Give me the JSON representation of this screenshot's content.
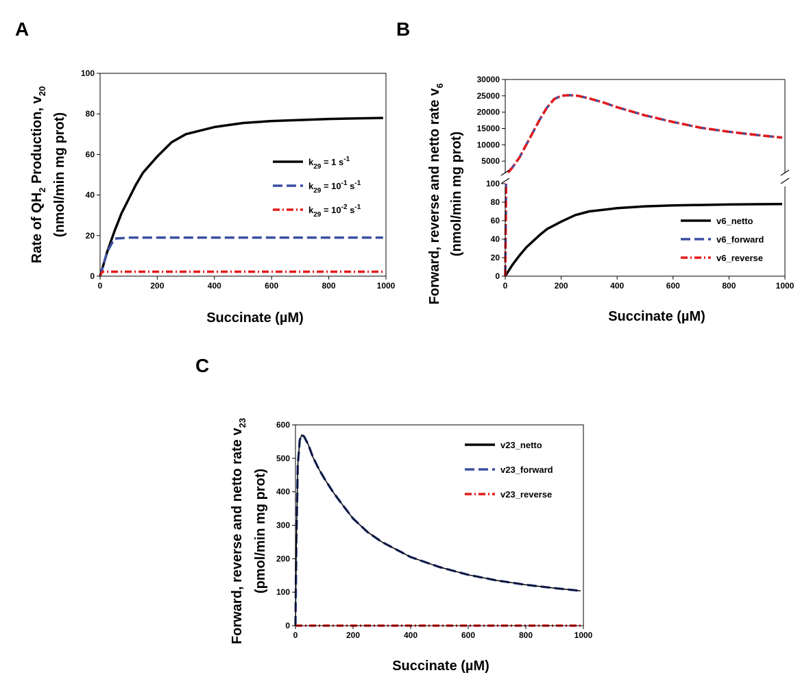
{
  "panels": [
    {
      "id": "A",
      "label": "A",
      "xlabel": "Succinate (µM)",
      "ylabel_line1": [
        "Rate of QH",
        "2",
        " Production, v",
        "20"
      ],
      "ylabel_line2": "(nmol/min mg prot)"
    },
    {
      "id": "B",
      "label": "B",
      "xlabel": "Succinate (µM)",
      "ylabel_line1": [
        "Forward, reverse and netto rate  v",
        "6"
      ],
      "ylabel_line2": "(nmol/min mg prot)"
    },
    {
      "id": "C",
      "label": "C",
      "xlabel": "Succinate (µM)",
      "ylabel_line1": [
        "Forward, reverse and netto rate v",
        "23"
      ],
      "ylabel_line2": "(pmol/min mg prot)"
    }
  ],
  "legendA": [
    {
      "parts": [
        "k",
        "29",
        " = 1 s",
        "-1"
      ],
      "color": "#000000",
      "dash": "solid"
    },
    {
      "parts": [
        "k",
        "29",
        " = 10",
        "-1",
        " s",
        "-1"
      ],
      "color": "#3b4fa0",
      "dash": "dash"
    },
    {
      "parts": [
        "k",
        "29",
        " = 10",
        "-2",
        " s",
        "-1"
      ],
      "color": "#e41a1c",
      "dash": "dashdot"
    }
  ],
  "legendB": [
    {
      "label": "v6_netto",
      "color": "#000000",
      "dash": "solid"
    },
    {
      "label": "v6_forward",
      "color": "#3b4fa0",
      "dash": "dash"
    },
    {
      "label": "v6_reverse",
      "color": "#e41a1c",
      "dash": "dashdot"
    }
  ],
  "legendC": [
    {
      "label": "v23_netto",
      "color": "#000000",
      "dash": "solid"
    },
    {
      "label": "v23_forward",
      "color": "#3b4fa0",
      "dash": "dash"
    },
    {
      "label": "v23_reverse",
      "color": "#e41a1c",
      "dash": "dashdot"
    }
  ],
  "chart_data": [
    {
      "panel": "A",
      "type": "line",
      "title": "",
      "xlabel": "Succinate (µM)",
      "ylabel": "Rate of QH2 Production, v20 (nmol/min mg prot)",
      "xlim": [
        0,
        1000
      ],
      "ylim": [
        0,
        100
      ],
      "xticks": [
        0,
        200,
        400,
        600,
        800,
        1000
      ],
      "yticks": [
        0,
        20,
        40,
        60,
        80,
        100
      ],
      "series": [
        {
          "name": "k29 = 1 s-1",
          "color": "#000000",
          "x": [
            0,
            25,
            50,
            75,
            100,
            125,
            150,
            175,
            200,
            250,
            300,
            400,
            500,
            600,
            700,
            800,
            900,
            990
          ],
          "y": [
            0,
            12,
            22,
            31,
            38,
            45,
            51,
            55,
            59,
            66,
            70,
            73.5,
            75.5,
            76.5,
            77,
            77.5,
            77.8,
            78
          ]
        },
        {
          "name": "k29 = 10-1 s-1",
          "color": "#3b4fa0",
          "x": [
            0,
            10,
            25,
            50,
            100,
            200,
            400,
            600,
            800,
            990
          ],
          "y": [
            0,
            5,
            12,
            18.5,
            19,
            19,
            19,
            19,
            19,
            19
          ]
        },
        {
          "name": "k29 = 10-2 s-1",
          "color": "#e41a1c",
          "x": [
            0,
            3,
            10,
            50,
            100,
            200,
            400,
            600,
            800,
            990
          ],
          "y": [
            0,
            1.5,
            2.2,
            2.2,
            2.2,
            2.2,
            2.2,
            2.2,
            2.2,
            2.2
          ]
        }
      ]
    },
    {
      "panel": "B",
      "type": "line",
      "title": "",
      "xlabel": "Succinate (µM)",
      "ylabel": "Forward, reverse and netto rate v6 (nmol/min mg prot)",
      "xlim": [
        0,
        1000
      ],
      "y_broken": true,
      "ylim_lower": [
        0,
        100
      ],
      "yticks_lower": [
        0,
        20,
        40,
        60,
        80,
        100
      ],
      "ylim_upper": [
        0,
        30000
      ],
      "yticks_upper": [
        5000,
        10000,
        15000,
        20000,
        25000,
        30000
      ],
      "xticks": [
        0,
        200,
        400,
        600,
        800,
        1000
      ],
      "series": [
        {
          "name": "v6_netto",
          "color": "#000000",
          "x": [
            0,
            25,
            50,
            75,
            100,
            125,
            150,
            175,
            200,
            250,
            300,
            400,
            500,
            600,
            700,
            800,
            900,
            990
          ],
          "y": [
            0,
            12,
            22,
            31,
            38,
            45,
            51,
            55,
            59,
            66,
            70,
            73.5,
            75.5,
            76.5,
            77,
            77.5,
            77.8,
            78
          ]
        },
        {
          "name": "v6_forward",
          "color": "#3b4fa0",
          "x": [
            0,
            1,
            2,
            3,
            10,
            25,
            50,
            75,
            100,
            125,
            150,
            175,
            200,
            230,
            260,
            300,
            350,
            400,
            500,
            600,
            700,
            800,
            900,
            990
          ],
          "y": [
            0,
            30,
            60,
            100,
            1500,
            3000,
            6000,
            10000,
            14000,
            18000,
            21500,
            24000,
            25000,
            25200,
            25000,
            24200,
            23000,
            21500,
            19000,
            17000,
            15200,
            14000,
            13000,
            12200
          ]
        },
        {
          "name": "v6_reverse",
          "color": "#e41a1c",
          "x": [
            0,
            1,
            2,
            3,
            10,
            25,
            50,
            75,
            100,
            125,
            150,
            175,
            200,
            230,
            260,
            300,
            350,
            400,
            500,
            600,
            700,
            800,
            900,
            990
          ],
          "y": [
            0,
            30,
            60,
            100,
            1500,
            3000,
            6000,
            10000,
            14000,
            18000,
            21500,
            24000,
            25000,
            25200,
            25000,
            24200,
            23000,
            21500,
            19000,
            17000,
            15200,
            14000,
            13000,
            12200
          ]
        }
      ]
    },
    {
      "panel": "C",
      "type": "line",
      "title": "",
      "xlabel": "Succinate (µM)",
      "ylabel": "Forward, reverse and netto rate v23 (pmol/min mg prot)",
      "xlim": [
        0,
        1000
      ],
      "ylim": [
        0,
        600
      ],
      "xticks": [
        0,
        200,
        400,
        600,
        800,
        1000
      ],
      "yticks": [
        0,
        100,
        200,
        300,
        400,
        500,
        600
      ],
      "series": [
        {
          "name": "v23_netto",
          "color": "#000000",
          "x": [
            0,
            3,
            8,
            15,
            22,
            30,
            45,
            60,
            80,
            100,
            130,
            160,
            200,
            250,
            300,
            400,
            500,
            600,
            700,
            800,
            900,
            990
          ],
          "y": [
            0,
            250,
            480,
            555,
            570,
            565,
            540,
            505,
            470,
            440,
            400,
            365,
            320,
            280,
            250,
            205,
            175,
            152,
            135,
            122,
            112,
            104
          ]
        },
        {
          "name": "v23_forward",
          "color": "#3b4fa0",
          "x": [
            0,
            3,
            8,
            15,
            22,
            30,
            45,
            60,
            80,
            100,
            130,
            160,
            200,
            250,
            300,
            400,
            500,
            600,
            700,
            800,
            900,
            990
          ],
          "y": [
            0,
            250,
            480,
            555,
            570,
            565,
            540,
            505,
            470,
            440,
            400,
            365,
            320,
            280,
            250,
            205,
            175,
            152,
            135,
            122,
            112,
            104
          ]
        },
        {
          "name": "v23_reverse",
          "color": "#e41a1c",
          "x": [
            0,
            100,
            200,
            400,
            600,
            800,
            990
          ],
          "y": [
            0,
            0,
            0,
            0,
            0,
            0,
            0
          ]
        }
      ]
    }
  ]
}
